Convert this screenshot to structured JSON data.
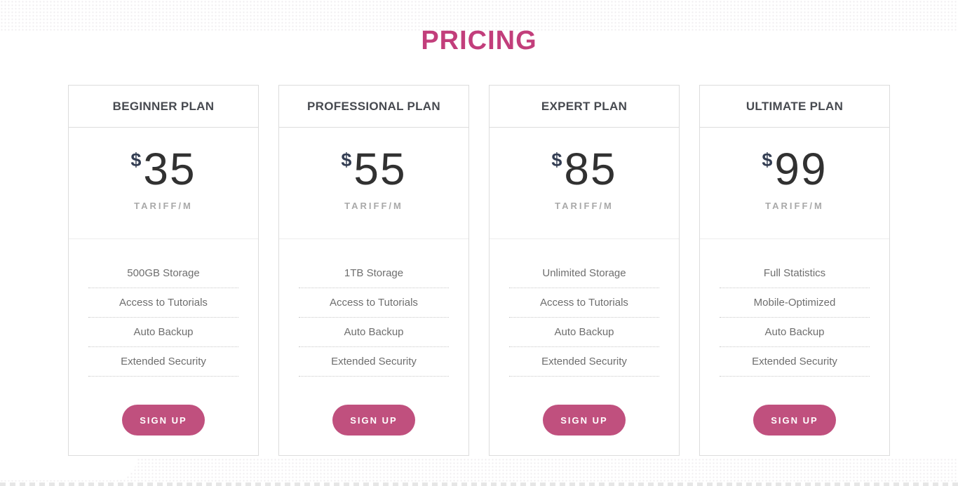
{
  "page": {
    "title": "PRICING"
  },
  "theme": {
    "accent": "#c23e7b",
    "button_bg": "#c0507e",
    "button_text": "#ffffff",
    "heading_color": "#474a50",
    "price_color": "#313131",
    "currency_color": "#333d52",
    "tariff_color": "#a9a9a9",
    "feature_color": "#6e6e6e",
    "card_border": "#dcdcdc"
  },
  "plans": [
    {
      "name": "BEGINNER PLAN",
      "currency": "$",
      "price": "35",
      "period": "TARIFF/M",
      "features": [
        "500GB Storage",
        "Access to Tutorials",
        "Auto Backup",
        "Extended Security"
      ],
      "cta": "SIGN UP"
    },
    {
      "name": "PROFESSIONAL PLAN",
      "currency": "$",
      "price": "55",
      "period": "TARIFF/M",
      "features": [
        "1TB Storage",
        "Access to Tutorials",
        "Auto Backup",
        "Extended Security"
      ],
      "cta": "SIGN UP"
    },
    {
      "name": "EXPERT PLAN",
      "currency": "$",
      "price": "85",
      "period": "TARIFF/M",
      "features": [
        "Unlimited Storage",
        "Access to Tutorials",
        "Auto Backup",
        "Extended Security"
      ],
      "cta": "SIGN UP"
    },
    {
      "name": "ULTIMATE PLAN",
      "currency": "$",
      "price": "99",
      "period": "TARIFF/M",
      "features": [
        "Full Statistics",
        "Mobile-Optimized",
        "Auto Backup",
        "Extended Security"
      ],
      "cta": "SIGN UP"
    }
  ]
}
